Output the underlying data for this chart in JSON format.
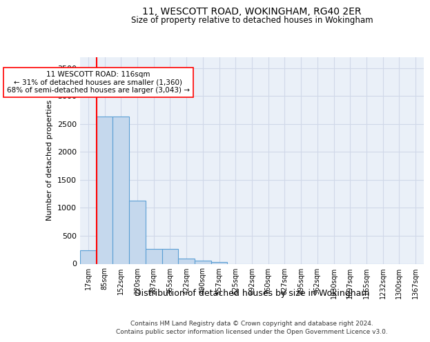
{
  "title": "11, WESCOTT ROAD, WOKINGHAM, RG40 2ER",
  "subtitle": "Size of property relative to detached houses in Wokingham",
  "xlabel": "Distribution of detached houses by size in Wokingham",
  "ylabel": "Number of detached properties",
  "categories": [
    "17sqm",
    "85sqm",
    "152sqm",
    "220sqm",
    "287sqm",
    "355sqm",
    "422sqm",
    "490sqm",
    "557sqm",
    "625sqm",
    "692sqm",
    "760sqm",
    "827sqm",
    "895sqm",
    "962sqm",
    "1030sqm",
    "1097sqm",
    "1165sqm",
    "1232sqm",
    "1300sqm",
    "1367sqm"
  ],
  "bar_values": [
    240,
    2630,
    2630,
    1130,
    270,
    270,
    95,
    50,
    25,
    0,
    0,
    0,
    0,
    0,
    0,
    0,
    0,
    0,
    0,
    0,
    0
  ],
  "bar_color": "#c5d8ed",
  "bar_edge_color": "#5a9fd4",
  "annotation_title": "11 WESCOTT ROAD: 116sqm",
  "annotation_line1": "← 31% of detached houses are smaller (1,360)",
  "annotation_line2": "68% of semi-detached houses are larger (3,043) →",
  "ylim": [
    0,
    3700
  ],
  "yticks": [
    0,
    500,
    1000,
    1500,
    2000,
    2500,
    3000,
    3500
  ],
  "grid_color": "#d0d8e8",
  "background_color": "#eaf0f8",
  "footnote1": "Contains HM Land Registry data © Crown copyright and database right 2024.",
  "footnote2": "Contains public sector information licensed under the Open Government Licence v3.0."
}
